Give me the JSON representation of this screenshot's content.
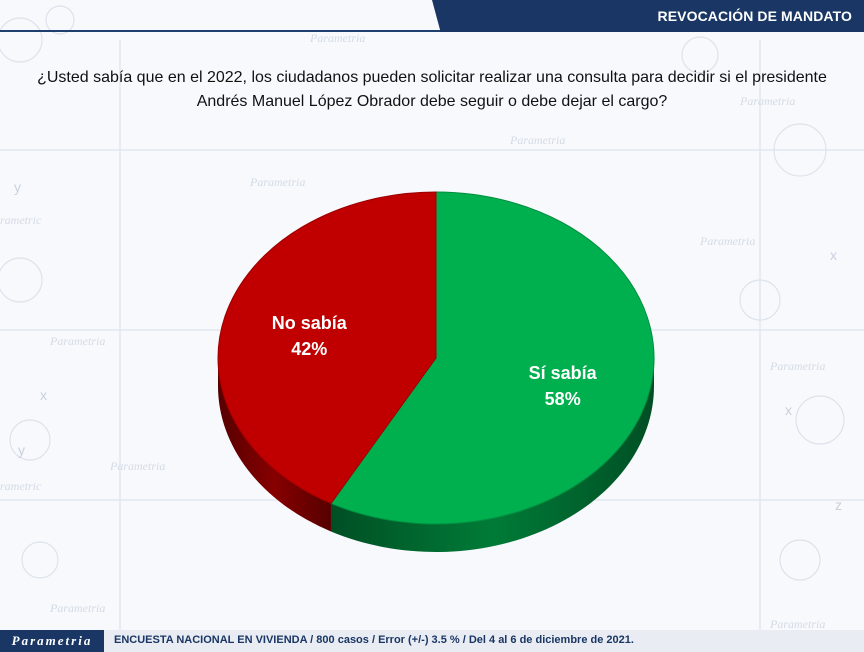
{
  "header": {
    "title": "REVOCACIÓN DE MANDATO"
  },
  "question": "¿Usted sabía que en el 2022, los ciudadanos pueden solicitar realizar una consulta para decidir si el presidente Andrés Manuel López Obrador debe seguir o debe dejar el cargo?",
  "footer": {
    "logo": "Parametria",
    "note": "ENCUESTA NACIONAL EN VIVIENDA / 800 casos / Error (+/-) 3.5 % / Del 4 al 6 de diciembre de 2021."
  },
  "colors": {
    "si": "#00b04f",
    "no": "#c00000",
    "brand": "#1a3664"
  },
  "chart_data": {
    "type": "pie",
    "slices": [
      {
        "label": "Sí sabía",
        "value": 58,
        "value_label": "58%",
        "color": "#00b04f"
      },
      {
        "label": "No sabía",
        "value": 42,
        "value_label": "42%",
        "color": "#c00000"
      }
    ]
  }
}
